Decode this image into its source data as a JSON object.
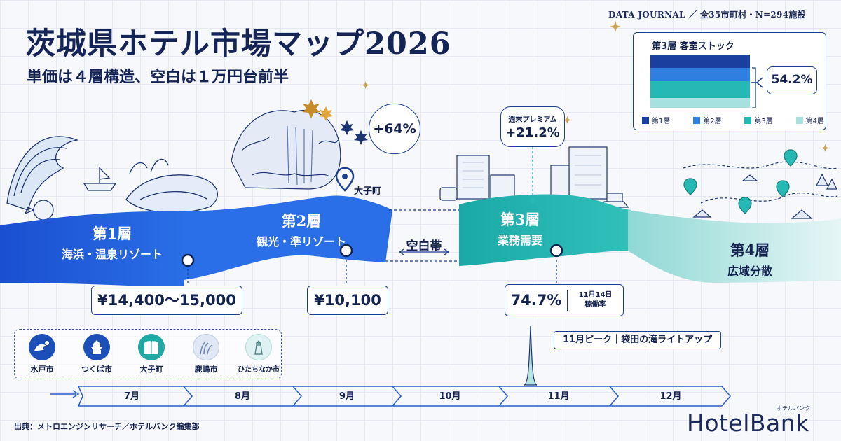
{
  "header": {
    "credit": "DATA JOURNAL ／ 全35市町村・N=294施設",
    "title": "茨城県ホテル市場マップ2026",
    "subtitle": "単価は４層構造、空白は１万円台前半"
  },
  "stock_card": {
    "title": "第3層 客室ストック",
    "share": "54.2%",
    "legend": [
      "第1層",
      "第2層",
      "第3層",
      "第4層"
    ],
    "colors": [
      "#1a3f9e",
      "#2f7fe0",
      "#26b8b4",
      "#a7e1df"
    ]
  },
  "tiers": [
    {
      "num": "第1層",
      "name": "海浜・温泉リゾート",
      "price": "¥14,400〜15,000",
      "color": "#1d5ad6"
    },
    {
      "num": "第2層",
      "name": "観光・準リゾート",
      "price": "¥10,100",
      "color": "#2a74e8",
      "callout": "+64%",
      "place_tag": "大子町"
    },
    {
      "num": "第3層",
      "name": "業務需要",
      "occupancy": "74.7%",
      "occupancy_date": "11月14日",
      "occupancy_label": "稼働率",
      "callout_label": "週末プレミアム",
      "callout": "+21.2%",
      "color": "#22b3ad"
    },
    {
      "num": "第4層",
      "name": "広域分散",
      "color": "#bfe8e6"
    }
  ],
  "gap_label": "空白帯",
  "cities": [
    {
      "name": "水戸市",
      "icon": "wave-icon"
    },
    {
      "name": "つくば市",
      "icon": "castle-icon"
    },
    {
      "name": "大子町",
      "icon": "waterfall-icon"
    },
    {
      "name": "鹿嶋市",
      "icon": "reeds-icon"
    },
    {
      "name": "ひたちなか市",
      "icon": "lighthouse-icon"
    }
  ],
  "timeline": {
    "months": [
      "7月",
      "8月",
      "9月",
      "10月",
      "11月",
      "12月"
    ],
    "peak_note": "11月ピーク｜袋田の滝ライトアップ"
  },
  "footer": {
    "source": "出典：メトロエンジンリサーチ／ホテルバンク編集部",
    "logo": "HotelBank",
    "logo_sub": "ホテルバンク"
  }
}
